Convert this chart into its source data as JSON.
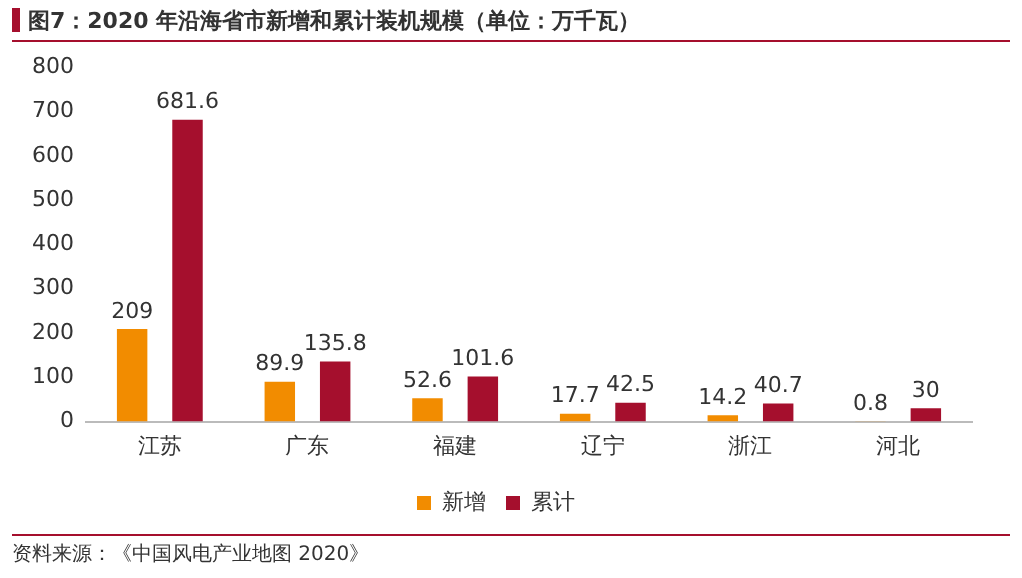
{
  "chart_data": {
    "type": "bar",
    "title": "图7：2020 年沿海省市新增和累计装机规模（单位：万千瓦）",
    "categories": [
      "江苏",
      "广东",
      "福建",
      "辽宁",
      "浙江",
      "河北"
    ],
    "series": [
      {
        "name": "新增",
        "color": "#f28c00",
        "values": [
          209,
          89.9,
          52.6,
          17.7,
          14.2,
          0.8
        ]
      },
      {
        "name": "累计",
        "color": "#a50f2d",
        "values": [
          681.6,
          135.8,
          101.6,
          42.5,
          40.7,
          30
        ]
      }
    ],
    "ylim": [
      0,
      800
    ],
    "yticks": [
      0,
      100,
      200,
      300,
      400,
      500,
      600,
      700,
      800
    ],
    "grid": false,
    "legend": "bottom",
    "data_labels": true,
    "annotations": [
      "资料来源：《中国风电产业地图 2020》"
    ]
  }
}
